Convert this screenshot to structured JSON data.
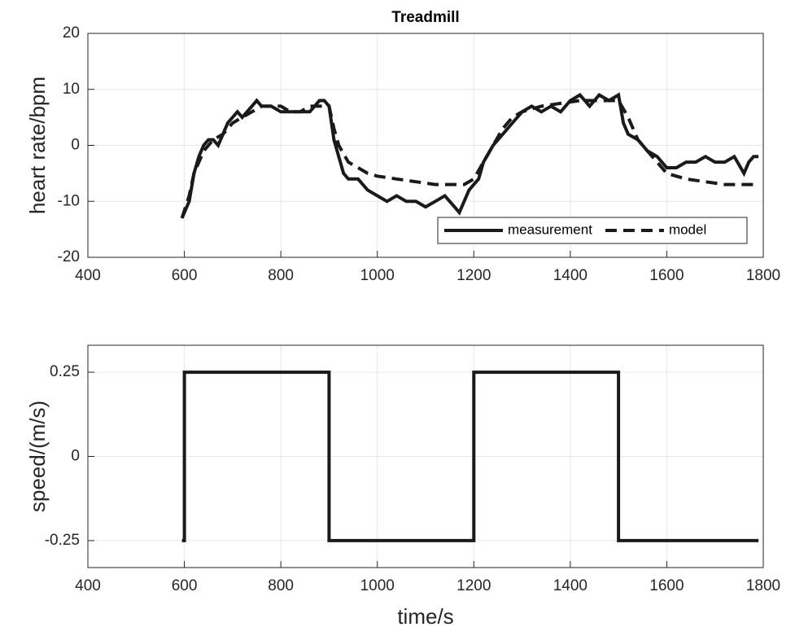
{
  "chart_data": [
    {
      "type": "line",
      "title": "Treadmill",
      "ylabel": "heart rate/bpm",
      "xlim": [
        400,
        1800
      ],
      "xticks": [
        400,
        600,
        800,
        1000,
        1200,
        1400,
        1600,
        1800
      ],
      "ylim": [
        -20,
        20
      ],
      "yticks": [
        -20,
        -10,
        0,
        10,
        20
      ],
      "grid": true,
      "legend": "lower right",
      "series": [
        {
          "name": "measurement",
          "color": "#1a1a1a",
          "linestyle": "solid",
          "x": [
            595,
            600,
            605,
            610,
            620,
            630,
            640,
            650,
            660,
            670,
            680,
            690,
            700,
            710,
            720,
            740,
            750,
            760,
            780,
            800,
            820,
            840,
            860,
            880,
            890,
            900,
            910,
            920,
            930,
            940,
            960,
            980,
            1000,
            1020,
            1040,
            1060,
            1080,
            1100,
            1120,
            1140,
            1160,
            1170,
            1180,
            1190,
            1200,
            1210,
            1220,
            1240,
            1260,
            1280,
            1300,
            1320,
            1340,
            1360,
            1380,
            1400,
            1420,
            1440,
            1460,
            1480,
            1500,
            1510,
            1520,
            1540,
            1560,
            1580,
            1600,
            1620,
            1640,
            1660,
            1680,
            1700,
            1720,
            1740,
            1760,
            1770,
            1780,
            1790
          ],
          "values": [
            -13,
            -12,
            -11,
            -10,
            -5,
            -2,
            0,
            1,
            1,
            0,
            2,
            4,
            5,
            6,
            5,
            7,
            8,
            7,
            7,
            6,
            6,
            6,
            6,
            8,
            8,
            7,
            1,
            -2,
            -5,
            -6,
            -6,
            -8,
            -9,
            -10,
            -9,
            -10,
            -10,
            -11,
            -10,
            -9,
            -11,
            -12,
            -10,
            -8,
            -7,
            -6,
            -3,
            0,
            2,
            4,
            6,
            7,
            6,
            7,
            6,
            8,
            9,
            7,
            9,
            8,
            9,
            4,
            2,
            1,
            -1,
            -2,
            -4,
            -4,
            -3,
            -3,
            -2,
            -3,
            -3,
            -2,
            -5,
            -3,
            -2,
            -2
          ]
        },
        {
          "name": "model",
          "color": "#1a1a1a",
          "linestyle": "dashed",
          "x": [
            595,
            610,
            620,
            640,
            660,
            680,
            700,
            720,
            740,
            760,
            780,
            800,
            820,
            840,
            860,
            880,
            900,
            910,
            920,
            940,
            960,
            980,
            1000,
            1040,
            1080,
            1120,
            1160,
            1180,
            1200,
            1220,
            1240,
            1260,
            1280,
            1300,
            1340,
            1380,
            1420,
            1460,
            1500,
            1520,
            1540,
            1560,
            1580,
            1600,
            1640,
            1680,
            1720,
            1760,
            1780
          ],
          "values": [
            -13,
            -9,
            -5,
            -1,
            1,
            2,
            4,
            5,
            6,
            7,
            7,
            7,
            6,
            6,
            7,
            7,
            7,
            3,
            0,
            -3,
            -4,
            -5,
            -5.5,
            -6,
            -6.5,
            -7,
            -7,
            -7,
            -6,
            -3,
            0,
            3,
            5,
            6,
            7,
            7.5,
            8,
            8,
            8,
            5,
            1,
            -1,
            -3,
            -5,
            -6,
            -6.5,
            -7,
            -7,
            -7
          ]
        }
      ]
    },
    {
      "type": "line",
      "ylabel": "speed/(m/s)",
      "xlabel": "time/s",
      "xlim": [
        400,
        1800
      ],
      "xticks": [
        400,
        600,
        800,
        1000,
        1200,
        1400,
        1600,
        1800
      ],
      "ylim": [
        -0.33,
        0.33
      ],
      "yticks": [
        -0.25,
        0,
        0.25
      ],
      "grid": true,
      "series": [
        {
          "color": "#1a1a1a",
          "linestyle": "solid",
          "x": [
            595,
            600,
            600,
            900,
            900,
            1200,
            1200,
            1500,
            1500,
            1790
          ],
          "values": [
            -0.25,
            -0.25,
            0.25,
            0.25,
            -0.25,
            -0.25,
            0.25,
            0.25,
            -0.25,
            -0.25
          ]
        }
      ]
    }
  ]
}
